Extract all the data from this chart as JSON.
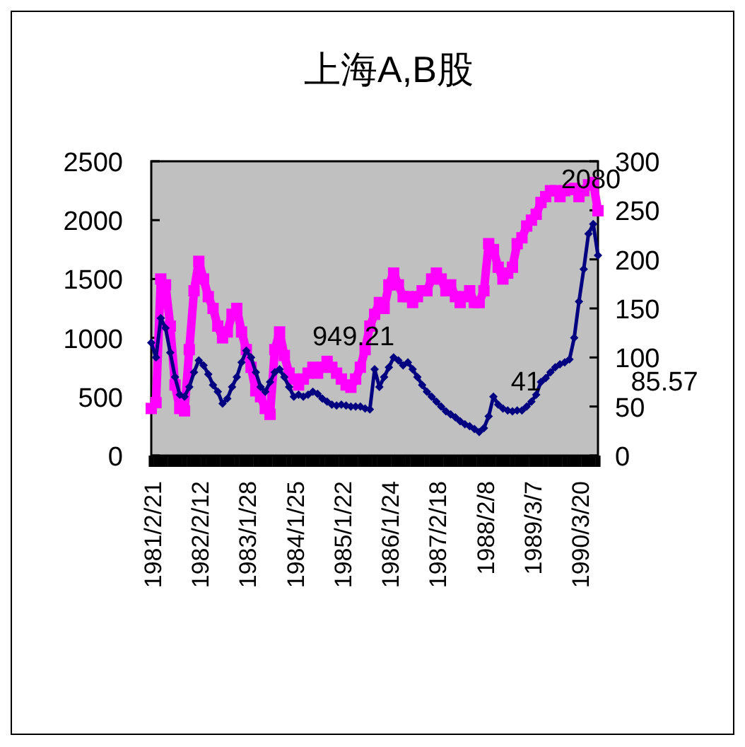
{
  "chart_data": {
    "type": "line",
    "title": "上海A,B股",
    "categories": [
      "1981/2/21",
      null,
      null,
      null,
      null,
      null,
      null,
      null,
      null,
      null,
      "1982/2/12",
      null,
      null,
      null,
      null,
      null,
      null,
      null,
      null,
      null,
      "1983/1/28",
      null,
      null,
      null,
      null,
      null,
      null,
      null,
      null,
      null,
      "1984/1/25",
      null,
      null,
      null,
      null,
      null,
      null,
      null,
      null,
      null,
      "1985/1/22",
      null,
      null,
      null,
      null,
      null,
      null,
      null,
      null,
      null,
      "1986/1/24",
      null,
      null,
      null,
      null,
      null,
      null,
      null,
      null,
      null,
      "1987/2/18",
      null,
      null,
      null,
      null,
      null,
      null,
      null,
      null,
      null,
      "1988/2/8",
      null,
      null,
      null,
      null,
      null,
      null,
      null,
      null,
      null,
      "1989/3/7",
      null,
      null,
      null,
      null,
      null,
      null,
      null,
      null,
      null,
      "1990/3/20",
      null,
      null,
      null,
      null
    ],
    "series": [
      {
        "color": "#ff00ff",
        "marker": "square",
        "values": [
          400,
          450,
          1500,
          1450,
          1100,
          600,
          400,
          380,
          900,
          1400,
          1650,
          1500,
          1350,
          1250,
          1100,
          1000,
          1050,
          1200,
          1250,
          1050,
          900,
          750,
          550,
          500,
          400,
          350,
          900,
          1050,
          850,
          700,
          650,
          600,
          650,
          700,
          750,
          700,
          750,
          800,
          750,
          700,
          650,
          600,
          580,
          650,
          750,
          900,
          1100,
          1200,
          1300,
          1250,
          1450,
          1550,
          1450,
          1350,
          1350,
          1300,
          1350,
          1400,
          1400,
          1500,
          1550,
          1500,
          1400,
          1450,
          1350,
          1300,
          1350,
          1400,
          1300,
          1300,
          1400,
          1800,
          1750,
          1600,
          1500,
          1550,
          1600,
          1800,
          1850,
          1950,
          2000,
          2050,
          2150,
          2200,
          2250,
          2250,
          2200,
          2250,
          2260,
          2270,
          2200,
          2250,
          2300,
          2320,
          2080
        ]
      },
      {
        "color": "#000080",
        "marker": "diamond",
        "axis": "y2",
        "values": [
          115,
          100,
          140,
          130,
          105,
          80,
          62,
          60,
          70,
          85,
          97,
          92,
          83,
          72,
          65,
          53,
          58,
          70,
          80,
          95,
          107,
          100,
          85,
          70,
          65,
          75,
          85,
          88,
          80,
          70,
          60,
          62,
          60,
          62,
          65,
          63,
          58,
          55,
          52,
          51,
          52,
          51,
          50,
          50,
          50,
          48,
          47,
          88,
          70,
          80,
          90,
          100,
          97,
          92,
          95,
          88,
          80,
          72,
          65,
          60,
          55,
          50,
          45,
          42,
          39,
          35,
          32,
          30,
          27,
          24,
          28,
          40,
          60,
          52,
          48,
          46,
          45,
          46,
          46,
          50,
          55,
          62,
          75,
          79,
          85,
          90,
          93,
          95,
          98,
          120,
          157,
          190,
          226,
          236,
          204
        ]
      }
    ],
    "ylim": [
      0,
      2500
    ],
    "yticks": [
      0,
      500,
      1000,
      1500,
      2000,
      2500
    ],
    "y2lim": [
      0,
      300
    ],
    "y2ticks": [
      0,
      50,
      100,
      150,
      200,
      250,
      300
    ],
    "annotations": [
      "949.21",
      "2080",
      "41",
      "85.57"
    ]
  }
}
